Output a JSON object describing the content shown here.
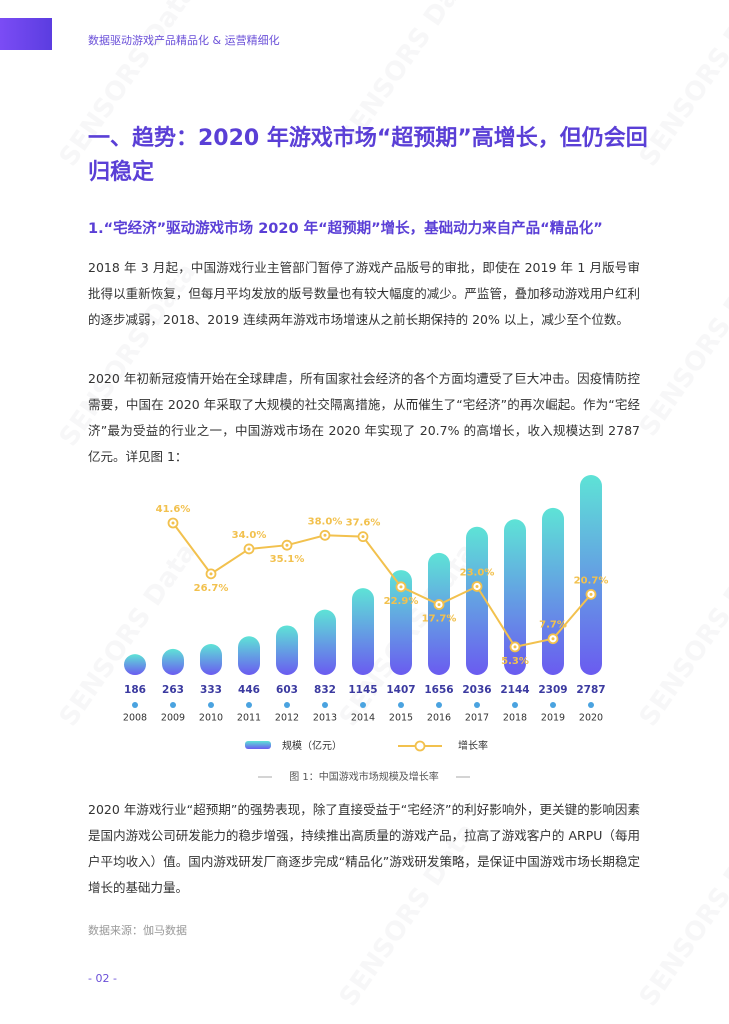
{
  "header": {
    "title": "数据驱动游戏产品精品化 & 运营精细化"
  },
  "watermark": "SENSORS Data",
  "section": {
    "title": "一、趋势：2020 年游戏市场“超预期”高增长，但仍会回归稳定",
    "subtitle": "1.“宅经济”驱动游戏市场 2020 年“超预期”增长，基础动力来自产品“精品化”"
  },
  "paragraphs": [
    "2018 年 3 月起，中国游戏行业主管部门暂停了游戏产品版号的审批，即使在 2019 年 1 月版号审批得以重新恢复，但每月平均发放的版号数量也有较大幅度的减少。严监管，叠加移动游戏用户红利的逐步减弱，2018、2019 连续两年游戏市场增速从之前长期保持的 20% 以上，减少至个位数。",
    "2020 年初新冠疫情开始在全球肆虐，所有国家社会经济的各个方面均遭受了巨大冲击。因疫情防控需要，中国在 2020 年采取了大规模的社交隔离措施，从而催生了“宅经济”的再次崛起。作为“宅经济”最为受益的行业之一，中国游戏市场在 2020 年实现了 20.7% 的高增长，收入规模达到 2787 亿元。详见图 1：",
    "2020 年游戏行业“超预期”的强势表现，除了直接受益于“宅经济”的利好影响外，更关键的影响因素是国内游戏公司研发能力的稳步增强，持续推出高质量的游戏产品，拉高了游戏客户的 ARPU（每用户平均收入）值。国内游戏研发厂商逐步完成“精品化”游戏研发策略，是保证中国游戏市场长期稳定增长的基础力量。"
  ],
  "chart_data": {
    "type": "bar",
    "title": "图 1：中国游戏市场规模及增长率",
    "categories": [
      "2008",
      "2009",
      "2010",
      "2011",
      "2012",
      "2013",
      "2014",
      "2015",
      "2016",
      "2017",
      "2018",
      "2019",
      "2020"
    ],
    "series": [
      {
        "name": "规模（亿元）",
        "color": "#6a5bf0",
        "values": [
          186,
          263,
          333,
          446,
          603,
          832,
          1145,
          1407,
          1656,
          2036,
          2144,
          2309,
          2787
        ]
      },
      {
        "name": "增长率",
        "type": "line",
        "color": "#f2c14e",
        "values": [
          null,
          41.6,
          26.7,
          34.0,
          35.1,
          38.0,
          37.6,
          22.9,
          17.7,
          23.0,
          5.3,
          7.7,
          20.7
        ],
        "value_labels": [
          null,
          "41.6%",
          "26.7%",
          "34.0%",
          "35.1%",
          "38.0%",
          "37.6%",
          "22.9%",
          "17.7%",
          "23.0%",
          "5.3%",
          "7.7%",
          "20.7%"
        ]
      }
    ]
  },
  "source": "数据来源：伽马数据",
  "page_number": "- 02 -"
}
